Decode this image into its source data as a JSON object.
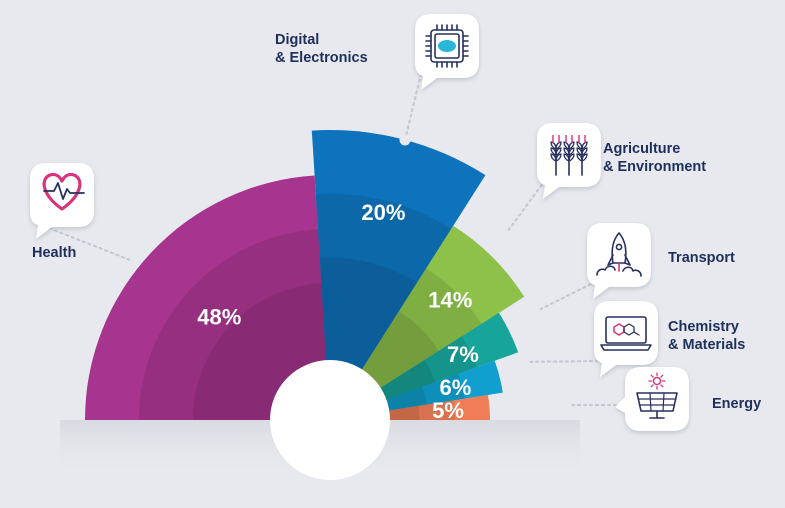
{
  "chart_data": {
    "type": "pie",
    "title": "",
    "categories": [
      "Health",
      "Digital & Electronics",
      "Agriculture & Environment",
      "Transport",
      "Chemistry & Materials",
      "Energy"
    ],
    "values": [
      48,
      20,
      14,
      7,
      6,
      5
    ],
    "value_labels": [
      "48%",
      "20%",
      "14%",
      "7%",
      "6%",
      "5%"
    ],
    "category_lines": [
      [
        "Health"
      ],
      [
        "Digital",
        "& Electronics"
      ],
      [
        "Agriculture",
        "& Environment"
      ],
      [
        "Transport"
      ],
      [
        "Chemistry",
        "& Materials"
      ],
      [
        "Energy"
      ]
    ],
    "colors": [
      "#a7348e",
      "#0d73bc",
      "#8dc14a",
      "#17a49a",
      "#109fce",
      "#ef7e57"
    ],
    "icons": [
      "heart-pulse-icon",
      "chip-icon",
      "wheat-icon",
      "rocket-icon",
      "laptop-molecule-icon",
      "solar-panel-icon"
    ],
    "legend": "labels-around-chart",
    "grid": false
  }
}
